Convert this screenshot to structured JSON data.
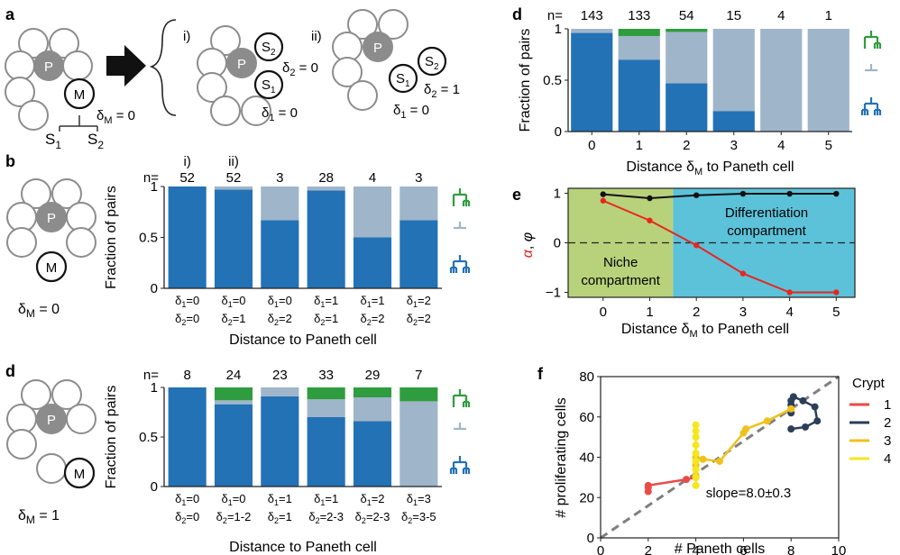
{
  "colors": {
    "symmetric": "#2372b5",
    "asymmetric": "#9fb5c9",
    "green": "#2f9d3f",
    "niche_bg": "#b8d27b",
    "diff_bg": "#5cc2d9",
    "red": "#e8261f",
    "crypt1": "#ec4a46",
    "crypt2": "#2b3e5a",
    "crypt3": "#efc11c",
    "crypt4": "#f5e61e",
    "fit": "#7f7f7f",
    "circle_fill": "#8c8c8c",
    "circle_stroke": "#8c8c8c"
  },
  "schematics": {
    "panel_a": {
      "letter": "a",
      "p": "P",
      "m": "M",
      "s1": "S",
      "s1_sub": "1",
      "s2": "S",
      "s2_sub": "2",
      "dm_text": "δ",
      "dm_sub": "M",
      "dm_val": " = 0",
      "case_i": "i)",
      "case_ii": "ii)",
      "i_d2": "δ",
      "i_d2_sub": "2",
      "i_d2_val": " = 0",
      "i_d1": "δ",
      "i_d1_sub": "1",
      "i_d1_val": " = 0",
      "ii_d2": "δ",
      "ii_d2_sub": "2",
      "ii_d2_val": " = 1",
      "ii_d1": "δ",
      "ii_d1_sub": "1",
      "ii_d1_val": " = 0"
    },
    "panel_b": {
      "letter": "b",
      "p": "P",
      "m": "M",
      "dm": "δ",
      "dm_sub": "M",
      "dm_val": " = 0"
    },
    "panel_d2": {
      "letter": "d",
      "p": "P",
      "m": "M",
      "dm": "δ",
      "dm_sub": "M",
      "dm_val": " = 1"
    }
  },
  "chart_data": [
    {
      "id": "b",
      "type": "bar",
      "letter": "b",
      "ylabel": "Fraction of pairs",
      "xlabel": "Distance to Paneth cell",
      "ylim": [
        0,
        1
      ],
      "yticks": [
        "0",
        "0.5",
        "1"
      ],
      "n_label": "n=",
      "n": [
        "52",
        "52",
        "3",
        "28",
        "4",
        "3"
      ],
      "case_labels": [
        "i)",
        "ii)",
        "",
        "",
        "",
        ""
      ],
      "cat_line1": [
        "δ1=0",
        "δ1=0",
        "δ1=0",
        "δ1=1",
        "δ1=1",
        "δ1=2"
      ],
      "cat_line2": [
        "δ2=0",
        "δ2=1",
        "δ2=2",
        "δ2=1",
        "δ2=2",
        "δ2=2"
      ],
      "series": [
        {
          "values": [
            1.0,
            0.97,
            0.67,
            0.96,
            0.5,
            0.67
          ]
        },
        {
          "values": [
            0.0,
            0.03,
            0.33,
            0.04,
            0.5,
            0.33
          ]
        },
        {
          "values": [
            0,
            0,
            0,
            0,
            0,
            0
          ]
        }
      ]
    },
    {
      "id": "d2",
      "type": "bar",
      "letter": "d",
      "ylabel": "Fraction of pairs",
      "xlabel": "Distance to Paneth cell",
      "ylim": [
        0,
        1
      ],
      "yticks": [
        "0",
        "0.5",
        "1"
      ],
      "n_label": "n=",
      "n": [
        "8",
        "24",
        "23",
        "33",
        "29",
        "7"
      ],
      "cat_line1": [
        "δ1=0",
        "δ1=0",
        "δ1=1",
        "δ1=1",
        "δ1=2",
        "δ1=3"
      ],
      "cat_line2": [
        "δ2=0",
        "δ2=1-2",
        "δ2=1",
        "δ2=2-3",
        "δ2=2-3",
        "δ2=3-5"
      ],
      "series": [
        {
          "values": [
            1.0,
            0.83,
            0.91,
            0.7,
            0.66,
            0.0
          ]
        },
        {
          "values": [
            0.0,
            0.04,
            0.09,
            0.18,
            0.24,
            0.86
          ]
        },
        {
          "values": [
            0.0,
            0.13,
            0.0,
            0.12,
            0.1,
            0.14
          ]
        }
      ]
    },
    {
      "id": "d1",
      "type": "bar",
      "letter": "d",
      "ylabel": "Fraction of pairs",
      "xlabel": "Distance δM to Paneth cell",
      "xlabel_main": "Distance ",
      "xlabel_delta": "δ",
      "xlabel_sub": "M",
      "xlabel_rest": " to Paneth cell",
      "ylim": [
        0,
        1
      ],
      "yticks": [
        "0",
        "0.5",
        "1"
      ],
      "n_label": "n=",
      "n": [
        "143",
        "133",
        "54",
        "15",
        "4",
        "1"
      ],
      "categories": [
        "0",
        "1",
        "2",
        "3",
        "4",
        "5"
      ],
      "series": [
        {
          "values": [
            0.96,
            0.7,
            0.47,
            0.2,
            0.0,
            0.0
          ]
        },
        {
          "values": [
            0.04,
            0.23,
            0.5,
            0.8,
            1.0,
            1.0
          ]
        },
        {
          "values": [
            0.0,
            0.07,
            0.03,
            0.0,
            0.0,
            0.0
          ]
        }
      ]
    },
    {
      "id": "e",
      "type": "line",
      "letter": "e",
      "ylabel_alpha": "α",
      "ylabel_sep": ", ",
      "ylabel_phi": "φ",
      "xlabel_main": "Distance ",
      "xlabel_delta": "δ",
      "xlabel_sub": "M",
      "xlabel_rest": " to Paneth cell",
      "x": [
        0,
        1,
        2,
        3,
        4,
        5
      ],
      "xlim": [
        -0.75,
        5.4
      ],
      "ylim": [
        -1.1,
        1.1
      ],
      "yticks": [
        -1,
        0,
        1
      ],
      "niche_boundary": 1.5,
      "niche_label": [
        "Niche",
        "compartment"
      ],
      "diff_label": [
        "Differentiation",
        "compartment"
      ],
      "series": [
        {
          "color_key": "black",
          "values": [
            0.98,
            0.9,
            0.96,
            0.99,
            0.99,
            0.99
          ]
        },
        {
          "color_key": "red",
          "values": [
            0.85,
            0.45,
            -0.05,
            -0.62,
            -1.0,
            -1.0
          ]
        }
      ]
    },
    {
      "id": "f",
      "type": "scatter",
      "letter": "f",
      "xlabel": "# Paneth cells",
      "ylabel": "# proliferating cells",
      "xlim": [
        0,
        10
      ],
      "ylim": [
        0,
        80
      ],
      "xticks": [
        0,
        2,
        4,
        6,
        8,
        10
      ],
      "yticks": [
        0,
        20,
        40,
        60,
        80
      ],
      "slope_text": "slope=8.0±0.3",
      "fit": {
        "x": [
          0,
          10
        ],
        "y": [
          0,
          80
        ]
      },
      "legend_title": "Crypt",
      "series": [
        {
          "name": "1",
          "color_key": "crypt1",
          "x": [
            2,
            2,
            2,
            3.6,
            4
          ],
          "y": [
            23,
            25,
            26,
            29,
            30
          ]
        },
        {
          "name": "2",
          "color_key": "crypt2",
          "x": [
            8,
            8,
            8,
            8.1,
            8.5,
            9,
            9.1,
            8.6,
            8
          ],
          "y": [
            62,
            66,
            68,
            70,
            68,
            65,
            58,
            55,
            54
          ]
        },
        {
          "name": "3",
          "color_key": "crypt3",
          "x": [
            4,
            4,
            4,
            4.3,
            5,
            6,
            6.1,
            7,
            8
          ],
          "y": [
            31,
            36,
            40,
            39,
            38,
            52,
            54,
            58,
            64
          ]
        },
        {
          "name": "4",
          "color_key": "crypt4",
          "x": [
            4,
            4,
            4,
            4,
            4,
            4,
            4,
            4,
            4
          ],
          "y": [
            26,
            30,
            34,
            38,
            42,
            46,
            50,
            53,
            56
          ]
        }
      ]
    }
  ]
}
